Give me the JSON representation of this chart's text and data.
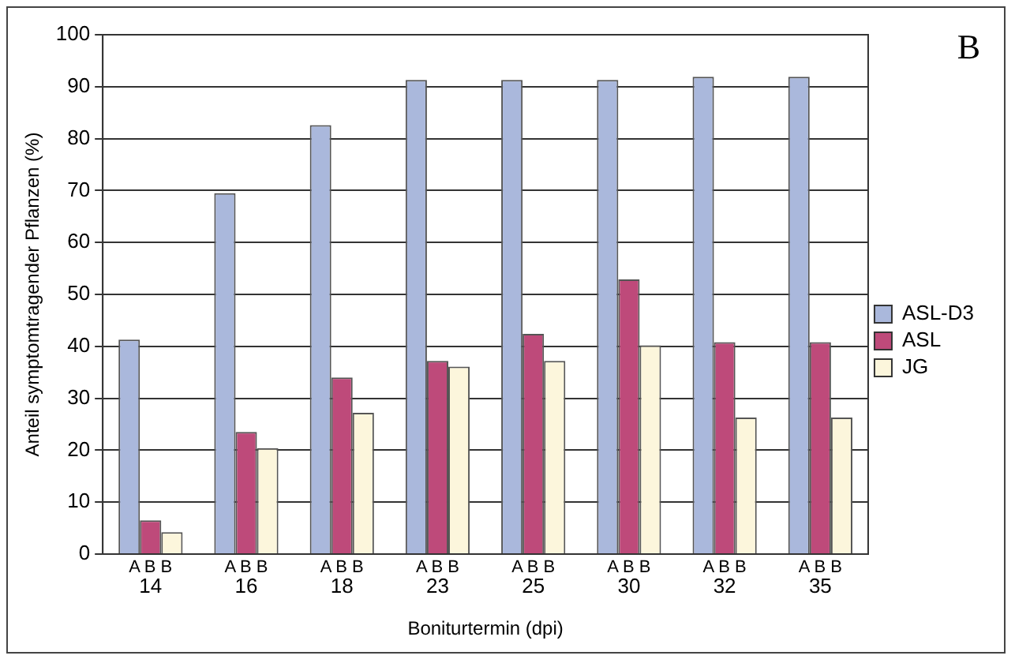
{
  "chart_data": {
    "type": "bar",
    "categories": [
      "14",
      "16",
      "18",
      "23",
      "25",
      "30",
      "32",
      "35"
    ],
    "series": [
      {
        "name": "ASL-D3",
        "color": "#aab8dc",
        "values": [
          41.3,
          69.5,
          82.6,
          91.3,
          91.3,
          91.3,
          91.9,
          91.9
        ]
      },
      {
        "name": "ASL",
        "color": "#be4a7a",
        "values": [
          6.5,
          23.5,
          34,
          37.2,
          42.4,
          52.9,
          40.8,
          40.8
        ]
      },
      {
        "name": "JG",
        "color": "#fcf6dc",
        "values": [
          4.2,
          20.4,
          27.2,
          36.1,
          37.2,
          40.2,
          26.3,
          26.3
        ]
      }
    ],
    "xlabel": "Boniturtermin (dpi)",
    "ylabel": "Anteil symptomtragender Pflanzen (%)",
    "ylim": [
      0,
      100
    ],
    "yticks": [
      0,
      10,
      20,
      30,
      40,
      50,
      60,
      70,
      80,
      90,
      100
    ],
    "grid": "y",
    "legend": "right",
    "annotations": [
      "B",
      "A B B",
      "A B B",
      "A B B",
      "A B B",
      "A B B",
      "A B B",
      "A B B",
      "A B B"
    ]
  }
}
